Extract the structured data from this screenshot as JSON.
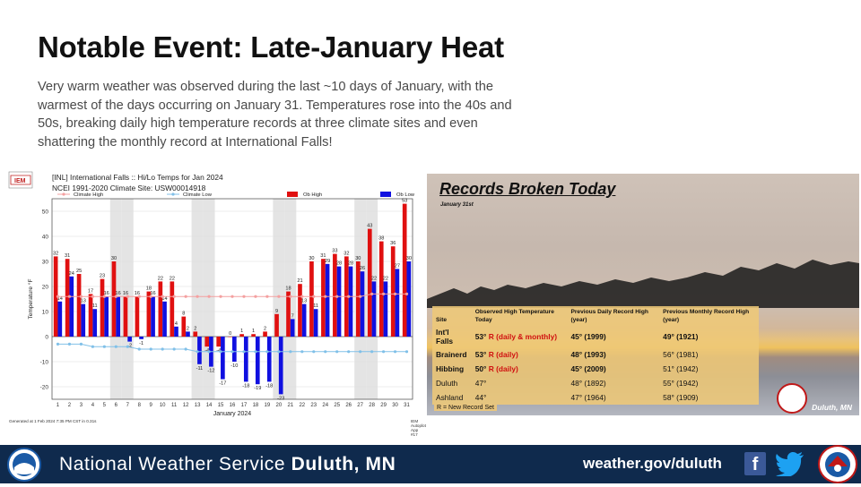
{
  "title": "Notable Event: Late-January Heat",
  "lede": "Very warm weather was observed during the last ~10 days of January, with the warmest of the days occurring on January 31. Temperatures rose into the 40s and 50s, breaking daily high temperature records at three climate sites and even shattering the monthly record at International Falls!",
  "chart_data": {
    "type": "bar",
    "title": "[INL] International Falls :: Hi/Lo Temps for Jan 2024",
    "subtitle": "NCEI 1991-2020 Climate Site: USW00014918",
    "xlabel": "January 2024",
    "ylabel": "Temperature °F",
    "ylim": [
      -25,
      55
    ],
    "yticks": [
      -20,
      -10,
      0,
      10,
      20,
      30,
      40,
      50
    ],
    "categories": [
      "1",
      "2",
      "3",
      "4",
      "5",
      "6",
      "7",
      "8",
      "9",
      "10",
      "11",
      "12",
      "13",
      "14",
      "15",
      "16",
      "17",
      "18",
      "19",
      "20",
      "21",
      "22",
      "23",
      "24",
      "25",
      "26",
      "27",
      "28",
      "29",
      "30",
      "31"
    ],
    "series": [
      {
        "name": "Ob High",
        "color": "#e01010",
        "values": [
          32,
          31,
          25,
          17,
          23,
          30,
          16,
          16,
          18,
          22,
          22,
          8,
          2,
          -4,
          -4,
          0,
          1,
          1,
          2,
          9,
          18,
          21,
          30,
          31,
          33,
          32,
          30,
          43,
          38,
          36,
          53
        ]
      },
      {
        "name": "Ob Low",
        "color": "#1010e0",
        "values": [
          14,
          24,
          13,
          11,
          16,
          16,
          -2,
          -1,
          16,
          14,
          4,
          2,
          -11,
          -12,
          -17,
          -10,
          -18,
          -19,
          -18,
          -23,
          7,
          13,
          11,
          29,
          28,
          28,
          26,
          22,
          22,
          27,
          30
        ]
      },
      {
        "name": "Climate High",
        "color": "#f4a0a0",
        "values": [
          16,
          16,
          16,
          16,
          16,
          16,
          16,
          16,
          16,
          16,
          16,
          16,
          16,
          16,
          16,
          16,
          16,
          16,
          16,
          16,
          16,
          16,
          16,
          16,
          16,
          16,
          16,
          17,
          17,
          17,
          17
        ]
      },
      {
        "name": "Climate Low",
        "color": "#80c0e8",
        "values": [
          -3,
          -3,
          -3,
          -4,
          -4,
          -4,
          -4,
          -5,
          -5,
          -5,
          -5,
          -5,
          -6,
          -6,
          -6,
          -6,
          -6,
          -6,
          -6,
          -6,
          -6,
          -6,
          -6,
          -6,
          -6,
          -6,
          -6,
          -6,
          -6,
          -6,
          -6
        ]
      }
    ],
    "grid": true,
    "legend_position": "top",
    "shaded_days": [
      6,
      7,
      13,
      14,
      20,
      21,
      27,
      28
    ],
    "footnote_left": "Generated at 1 Feb 2024 7:35 PM CST in 0.31s",
    "footnote_right": "IEM Autoplot App #17",
    "logo_text": "IEM"
  },
  "records": {
    "title": "Records Broken Today",
    "date": "January 31st",
    "headers": [
      "Site",
      "Observed High Temperature Today",
      "Previous Daily Record High (year)",
      "Previous Monthly Record High (year)"
    ],
    "rows": [
      {
        "site": "Int'l Falls",
        "observed": "53°",
        "note": "R (daily & monthly)",
        "daily": "45° (1999)",
        "monthly": "49° (1921)",
        "bold": true
      },
      {
        "site": "Brainerd",
        "observed": "53°",
        "note": "R (daily)",
        "daily": "48° (1993)",
        "monthly": "56° (1981)",
        "bold": true
      },
      {
        "site": "Hibbing",
        "observed": "50°",
        "note": "R (daily)",
        "daily": "45° (2009)",
        "monthly": "51° (1942)",
        "bold": true
      },
      {
        "site": "Duluth",
        "observed": "47°",
        "note": "",
        "daily": "48° (1892)",
        "monthly": "55° (1942)",
        "bold": false
      },
      {
        "site": "Ashland",
        "observed": "44°",
        "note": "",
        "daily": "47° (1964)",
        "monthly": "58° (1909)",
        "bold": false
      }
    ],
    "legend_note": "R = New Record Set",
    "location_tag": "Duluth, MN"
  },
  "footer": {
    "name_small": "National Weather Service",
    "name_bold": "Duluth, MN",
    "url": "weather.gov/duluth"
  },
  "icons": {
    "noaa": "noaa-logo",
    "nws": "nws-logo",
    "facebook": "facebook-icon",
    "twitter": "twitter-icon"
  }
}
